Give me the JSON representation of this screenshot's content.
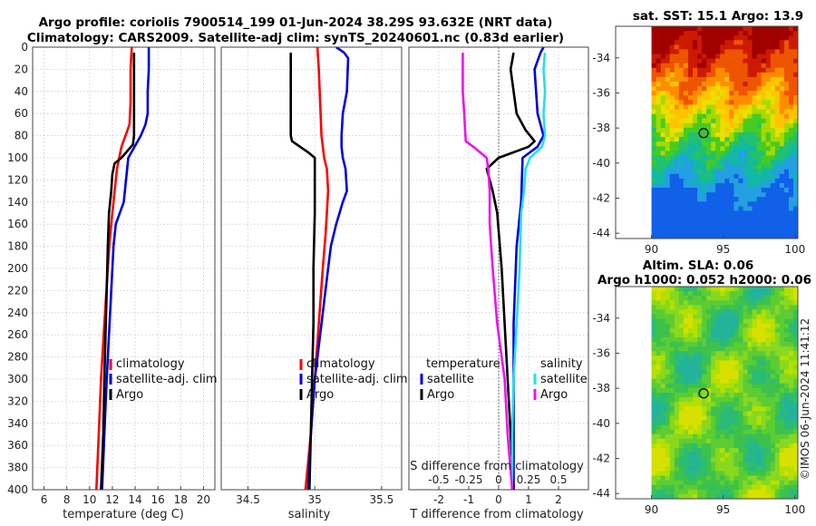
{
  "titles": {
    "line1": "Argo profile: coriolis 7900514_199 01-Jun-2024 38.29S 93.632E (NRT data)",
    "line2": "Climatology: CARS2009. Satellite-adj clim: synTS_20240601.nc (0.83d earlier)"
  },
  "colors": {
    "climatology": "#ff0000",
    "satellite": "#0000dd",
    "argo": "#000000",
    "sat_salinity": "#22e0f0",
    "argo_salinity": "#ee11ee"
  },
  "chart_data": [
    {
      "type": "line",
      "id": "temperature",
      "xlabel": "temperature (deg C)",
      "xlim": [
        5,
        21
      ],
      "xticks": [
        6,
        8,
        10,
        12,
        14,
        16,
        18,
        20
      ],
      "ylim": [
        0,
        400
      ],
      "yticks": [
        0,
        20,
        40,
        60,
        80,
        100,
        120,
        140,
        160,
        180,
        200,
        220,
        240,
        260,
        280,
        300,
        320,
        340,
        360,
        380,
        400
      ],
      "grid": true,
      "legend": [
        "climatology",
        "satellite-adj. clim",
        "Argo"
      ],
      "series": [
        {
          "name": "climatology",
          "color": "#ff0000",
          "depth": [
            0,
            20,
            50,
            70,
            90,
            110,
            140,
            170,
            200,
            250,
            300,
            350,
            400
          ],
          "values": [
            13.7,
            13.6,
            13.6,
            13.5,
            12.8,
            12.4,
            12.1,
            11.8,
            11.6,
            11.3,
            11.0,
            10.8,
            10.6
          ]
        },
        {
          "name": "satellite-adj. clim",
          "color": "#0000dd",
          "depth": [
            0,
            20,
            40,
            60,
            70,
            80,
            100,
            140,
            160,
            180,
            220,
            260,
            300,
            350,
            400
          ],
          "values": [
            15.2,
            15.2,
            15.1,
            15.1,
            14.9,
            14.5,
            13.4,
            13.0,
            12.3,
            12.1,
            11.9,
            11.7,
            11.5,
            11.3,
            11.1
          ]
        },
        {
          "name": "Argo",
          "color": "#000000",
          "depth": [
            5,
            20,
            40,
            60,
            80,
            88,
            100,
            105,
            115,
            130,
            150,
            180,
            220,
            260,
            300,
            350,
            400
          ],
          "values": [
            13.9,
            13.9,
            13.9,
            13.9,
            13.9,
            13.8,
            12.8,
            12.2,
            12.0,
            11.9,
            11.7,
            11.6,
            11.5,
            11.4,
            11.3,
            11.2,
            11.0
          ]
        }
      ]
    },
    {
      "type": "line",
      "id": "salinity",
      "xlabel": "salinity",
      "xlim": [
        34.3,
        35.65
      ],
      "xticks": [
        34.5,
        35,
        35.5
      ],
      "ylim": [
        0,
        400
      ],
      "grid": true,
      "legend": [
        "climatology",
        "satellite-adj. clim",
        "Argo"
      ],
      "series": [
        {
          "name": "climatology",
          "color": "#ff0000",
          "depth": [
            0,
            20,
            50,
            80,
            100,
            110,
            130,
            150,
            170,
            200,
            250,
            300,
            350,
            400
          ],
          "values": [
            35.02,
            35.03,
            35.04,
            35.05,
            35.07,
            35.09,
            35.1,
            35.09,
            35.08,
            35.06,
            35.03,
            35.0,
            34.97,
            34.93
          ]
        },
        {
          "name": "satellite-adj. clim",
          "color": "#0000dd",
          "depth": [
            0,
            5,
            10,
            40,
            60,
            80,
            90,
            100,
            110,
            130,
            140,
            160,
            180,
            200,
            250,
            300,
            350,
            400
          ],
          "values": [
            35.16,
            35.22,
            35.25,
            35.24,
            35.21,
            35.2,
            35.2,
            35.21,
            35.23,
            35.24,
            35.21,
            35.16,
            35.12,
            35.1,
            35.05,
            35.0,
            34.97,
            34.95
          ]
        },
        {
          "name": "Argo",
          "color": "#000000",
          "depth": [
            5,
            20,
            40,
            60,
            80,
            85,
            95,
            100,
            110,
            150,
            200,
            250,
            300,
            350,
            400
          ],
          "values": [
            34.82,
            34.82,
            34.82,
            34.82,
            34.82,
            34.83,
            34.95,
            35.0,
            35.0,
            35.0,
            34.99,
            34.99,
            34.98,
            34.97,
            34.96
          ]
        }
      ]
    },
    {
      "type": "line",
      "id": "difference",
      "xlabel": "T difference from climatology",
      "xlabel_top": "S difference from climatology",
      "xlim": [
        -3,
        3
      ],
      "xticks": [
        -2,
        -1,
        0,
        1,
        2
      ],
      "xticks_top_labels": [
        "-0.5",
        "-0.25",
        "0",
        "0.25",
        "0.5"
      ],
      "ylim": [
        0,
        400
      ],
      "grid": true,
      "legend": {
        "temperature_heading": "temperature",
        "salinity_heading": "salinity",
        "entries": [
          "satellite",
          "Argo",
          "satellite",
          "Argo"
        ]
      },
      "series": [
        {
          "name": "temperature satellite",
          "color": "#0000dd",
          "depth": [
            0,
            5,
            20,
            60,
            80,
            90,
            100,
            140,
            180,
            250,
            300,
            350,
            400
          ],
          "values": [
            1.5,
            1.4,
            1.2,
            1.3,
            1.5,
            1.3,
            0.8,
            0.75,
            0.6,
            0.5,
            0.5,
            0.5,
            0.5
          ]
        },
        {
          "name": "temperature Argo",
          "color": "#000000",
          "depth": [
            5,
            20,
            60,
            75,
            85,
            90,
            100,
            110,
            130,
            150,
            200,
            250,
            300,
            350,
            400
          ],
          "values": [
            0.5,
            0.4,
            0.6,
            0.9,
            1.2,
            1.0,
            0.0,
            -0.4,
            -0.2,
            -0.05,
            0.1,
            0.2,
            0.3,
            0.4,
            0.5
          ]
        },
        {
          "name": "salinity satellite",
          "color": "#22e0f0",
          "depth": [
            5,
            20,
            40,
            60,
            80,
            90,
            100,
            110,
            130,
            150,
            200,
            250,
            300,
            350,
            400
          ],
          "values": [
            1.55,
            1.5,
            1.55,
            1.5,
            1.55,
            1.45,
            1.05,
            0.9,
            0.85,
            0.75,
            0.7,
            0.6,
            0.5,
            0.45,
            0.45
          ]
        },
        {
          "name": "salinity Argo",
          "color": "#ee11ee",
          "depth": [
            5,
            20,
            40,
            60,
            85,
            90,
            100,
            110,
            130,
            160,
            200,
            250,
            280,
            300,
            350,
            400
          ],
          "values": [
            -1.2,
            -1.2,
            -1.2,
            -1.15,
            -1.1,
            -0.85,
            -0.4,
            -0.35,
            -0.3,
            -0.3,
            -0.2,
            -0.05,
            0.1,
            0.2,
            0.3,
            0.45
          ]
        }
      ]
    },
    {
      "type": "heatmap",
      "id": "sst_map",
      "title": "sat. SST: 15.1 Argo: 13.9",
      "xlim": [
        87.5,
        100.2
      ],
      "ylim": [
        -44.3,
        -32.2
      ],
      "xticks": [
        90,
        95,
        100
      ],
      "yticks": [
        -34,
        -36,
        -38,
        -40,
        -42,
        -44
      ],
      "profile_location": {
        "lon": 93.632,
        "lat": -38.29
      }
    },
    {
      "type": "heatmap",
      "id": "sla_map",
      "title_line1": "Altim. SLA: 0.06",
      "title_line2": "Argo h1000: 0.052 h2000: 0.06",
      "xlim": [
        87.5,
        100.2
      ],
      "ylim": [
        -44.3,
        -32.2
      ],
      "xticks": [
        90,
        95,
        100
      ],
      "yticks": [
        -34,
        -36,
        -38,
        -40,
        -42,
        -44
      ],
      "profile_location": {
        "lon": 93.632,
        "lat": -38.29
      }
    }
  ],
  "credit": "©IMOS 06-Jun-2024 11:41:12"
}
